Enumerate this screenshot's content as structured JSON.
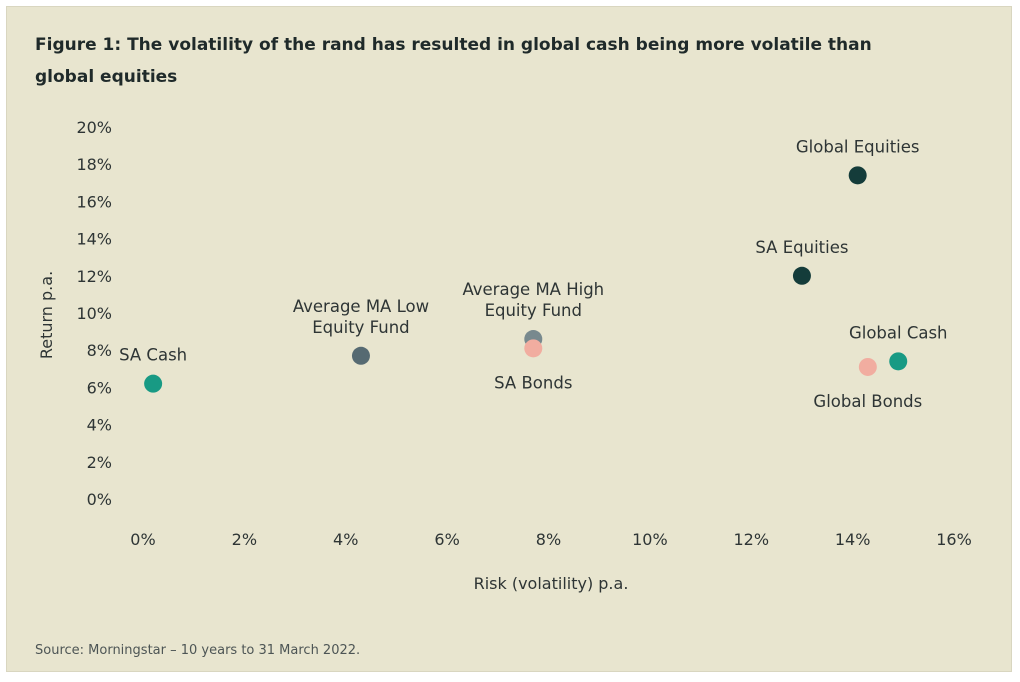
{
  "figure": {
    "title": "Figure 1: The volatility of the rand has resulted in global cash being more volatile than global equities",
    "source": "Source: Morningstar – 10 years to 31 March 2022."
  },
  "chart_data": {
    "type": "scatter",
    "title": "Figure 1: The volatility of the rand has resulted in global cash being more volatile than global equities",
    "xlabel": "Risk (volatility) p.a.",
    "ylabel": "Return p.a.",
    "xlim": [
      0,
      16
    ],
    "ylim": [
      0,
      20
    ],
    "x_ticks": [
      "0%",
      "2%",
      "4%",
      "6%",
      "8%",
      "10%",
      "12%",
      "14%",
      "16%"
    ],
    "y_ticks": [
      "0%",
      "2%",
      "4%",
      "6%",
      "8%",
      "10%",
      "12%",
      "14%",
      "16%",
      "18%",
      "20%"
    ],
    "grid": false,
    "points": [
      {
        "label": [
          "SA Cash"
        ],
        "x": 0.2,
        "y": 6.2,
        "color": "#189a84",
        "label_pos": "above"
      },
      {
        "label": [
          "Average MA Low",
          "Equity Fund"
        ],
        "x": 4.3,
        "y": 7.7,
        "color": "#566a72",
        "label_pos": "above"
      },
      {
        "label": [
          "Average MA High",
          "Equity Fund"
        ],
        "x": 7.7,
        "y": 8.6,
        "color": "#78898e",
        "label_pos": "above"
      },
      {
        "label": [
          "SA Bonds"
        ],
        "x": 7.7,
        "y": 8.1,
        "color": "#f1ada0",
        "label_pos": "below"
      },
      {
        "label": [
          "SA Equities"
        ],
        "x": 13.0,
        "y": 12.0,
        "color": "#143c3a",
        "label_pos": "above"
      },
      {
        "label": [
          "Global Equities"
        ],
        "x": 14.1,
        "y": 17.4,
        "color": "#143c3a",
        "label_pos": "above"
      },
      {
        "label": [
          "Global Cash"
        ],
        "x": 14.9,
        "y": 7.4,
        "color": "#189a84",
        "label_pos": "above"
      },
      {
        "label": [
          "Global Bonds"
        ],
        "x": 14.3,
        "y": 7.1,
        "color": "#f1ada0",
        "label_pos": "below"
      }
    ]
  }
}
